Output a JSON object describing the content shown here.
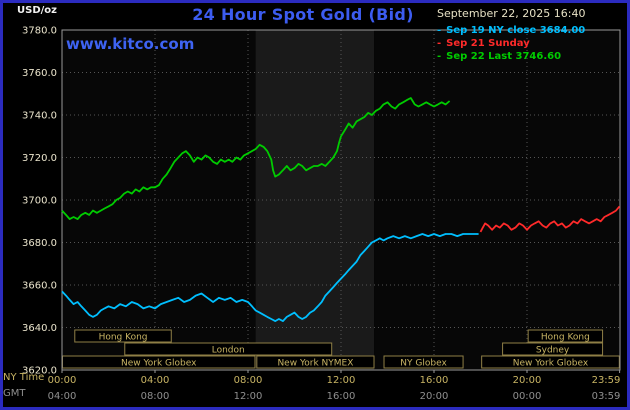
{
  "header": {
    "units_label": "USD/oz",
    "title": "24 Hour Spot Gold (Bid)",
    "datetime": "September 22, 2025 16:40",
    "watermark": "www.kitco.com"
  },
  "legend": {
    "items": [
      {
        "label": "Sep 19 NY close 3684.00",
        "color": "#00bfff"
      },
      {
        "label": "Sep 21 Sunday",
        "color": "#ff2a2a"
      },
      {
        "label": "Sep 22 Last 3746.60",
        "color": "#00cc00"
      }
    ]
  },
  "axes": {
    "y_ticks": [
      "3780.0",
      "3760.0",
      "3740.0",
      "3720.0",
      "3700.0",
      "3680.0",
      "3660.0",
      "3640.0",
      "3620.0"
    ],
    "x_row1_label": "NY Time",
    "x_row2_label": "GMT",
    "x_row1_ticks": [
      "00:00",
      "04:00",
      "08:00",
      "12:00",
      "16:00",
      "20:00",
      "23:59"
    ],
    "x_row2_ticks": [
      "04:00",
      "08:00",
      "12:00",
      "16:00",
      "20:00",
      "00:00",
      "03:59"
    ]
  },
  "sessions": [
    {
      "label": "Hong Kong",
      "row": 0,
      "start": 0.55,
      "end": 4.7
    },
    {
      "label": "Hong Kong",
      "row": 0,
      "start": 20.05,
      "end": 23.25
    },
    {
      "label": "London",
      "row": 1,
      "start": 2.7,
      "end": 11.6
    },
    {
      "label": "Sydney",
      "row": 1,
      "start": 18.95,
      "end": 23.25
    },
    {
      "label": "New York Globex",
      "row": 2,
      "start": 0.02,
      "end": 8.3
    },
    {
      "label": "New York NYMEX",
      "row": 2,
      "start": 8.38,
      "end": 13.42
    },
    {
      "label": "NY Globex",
      "row": 2,
      "start": 13.85,
      "end": 17.25
    },
    {
      "label": "New York Globex",
      "row": 2,
      "start": 18.05,
      "end": 23.97
    }
  ],
  "chart_data": {
    "type": "line",
    "title": "24 Hour Spot Gold (Bid)",
    "ylabel": "USD/oz",
    "xlabel": "NY Time (hours)",
    "x_range": [
      0,
      24
    ],
    "y_range": [
      3620,
      3780
    ],
    "y_gridlines": [
      3640,
      3660,
      3680,
      3700,
      3720,
      3740,
      3760
    ],
    "x_gridlines": [
      4,
      8,
      12,
      16,
      20
    ],
    "x_tick_hours": [
      0,
      4,
      8,
      12,
      16,
      20,
      23.983
    ],
    "nymex_band": [
      8.33,
      13.42
    ],
    "band_color": "#1a1a1a",
    "plot_bg": "#070707",
    "grid_on": true,
    "legend_position": "top-right",
    "series": [
      {
        "id": "sep22-today",
        "name": "Sep 22 Last 3746.60",
        "color": "#00cc00",
        "points": [
          [
            0,
            3695
          ],
          [
            0.17,
            3693
          ],
          [
            0.33,
            3691
          ],
          [
            0.5,
            3692
          ],
          [
            0.67,
            3691
          ],
          [
            0.83,
            3693
          ],
          [
            1,
            3694
          ],
          [
            1.17,
            3693
          ],
          [
            1.33,
            3695
          ],
          [
            1.5,
            3694
          ],
          [
            1.67,
            3695
          ],
          [
            1.83,
            3696
          ],
          [
            2,
            3697
          ],
          [
            2.17,
            3698
          ],
          [
            2.33,
            3700
          ],
          [
            2.5,
            3701
          ],
          [
            2.67,
            3703
          ],
          [
            2.83,
            3704
          ],
          [
            3,
            3703
          ],
          [
            3.17,
            3705
          ],
          [
            3.33,
            3704
          ],
          [
            3.5,
            3706
          ],
          [
            3.67,
            3705
          ],
          [
            3.83,
            3706
          ],
          [
            4,
            3706
          ],
          [
            4.17,
            3707
          ],
          [
            4.33,
            3710
          ],
          [
            4.5,
            3712
          ],
          [
            4.67,
            3715
          ],
          [
            4.83,
            3718
          ],
          [
            5,
            3720
          ],
          [
            5.17,
            3722
          ],
          [
            5.33,
            3723
          ],
          [
            5.5,
            3721
          ],
          [
            5.67,
            3718
          ],
          [
            5.83,
            3720
          ],
          [
            6,
            3719
          ],
          [
            6.17,
            3721
          ],
          [
            6.33,
            3720
          ],
          [
            6.5,
            3718
          ],
          [
            6.67,
            3717
          ],
          [
            6.83,
            3719
          ],
          [
            7,
            3718
          ],
          [
            7.17,
            3719
          ],
          [
            7.33,
            3718
          ],
          [
            7.5,
            3720
          ],
          [
            7.67,
            3719
          ],
          [
            7.83,
            3721
          ],
          [
            8,
            3722
          ],
          [
            8.17,
            3723
          ],
          [
            8.33,
            3724
          ],
          [
            8.5,
            3726
          ],
          [
            8.67,
            3725
          ],
          [
            8.83,
            3723
          ],
          [
            9,
            3719
          ],
          [
            9.08,
            3714
          ],
          [
            9.17,
            3711
          ],
          [
            9.33,
            3712
          ],
          [
            9.5,
            3714
          ],
          [
            9.67,
            3716
          ],
          [
            9.83,
            3714
          ],
          [
            10,
            3715
          ],
          [
            10.17,
            3717
          ],
          [
            10.33,
            3716
          ],
          [
            10.5,
            3714
          ],
          [
            10.67,
            3715
          ],
          [
            10.83,
            3716
          ],
          [
            11,
            3716
          ],
          [
            11.17,
            3717
          ],
          [
            11.33,
            3716
          ],
          [
            11.5,
            3718
          ],
          [
            11.67,
            3720
          ],
          [
            11.83,
            3723
          ],
          [
            11.92,
            3727
          ],
          [
            12,
            3730
          ],
          [
            12.17,
            3733
          ],
          [
            12.33,
            3736
          ],
          [
            12.5,
            3734
          ],
          [
            12.67,
            3737
          ],
          [
            12.83,
            3738
          ],
          [
            13,
            3739
          ],
          [
            13.17,
            3741
          ],
          [
            13.33,
            3740
          ],
          [
            13.5,
            3742
          ],
          [
            13.67,
            3743
          ],
          [
            13.83,
            3745
          ],
          [
            14,
            3746
          ],
          [
            14.17,
            3744
          ],
          [
            14.33,
            3743
          ],
          [
            14.5,
            3745
          ],
          [
            14.67,
            3746
          ],
          [
            14.83,
            3747
          ],
          [
            15,
            3748
          ],
          [
            15.17,
            3745
          ],
          [
            15.33,
            3744
          ],
          [
            15.5,
            3745
          ],
          [
            15.67,
            3746
          ],
          [
            15.83,
            3745
          ],
          [
            16,
            3744
          ],
          [
            16.17,
            3745
          ],
          [
            16.33,
            3746
          ],
          [
            16.5,
            3745
          ],
          [
            16.67,
            3746.6
          ]
        ]
      },
      {
        "id": "sep21-sunday",
        "name": "Sep 21 Sunday",
        "color": "#ff2a2a",
        "points": [
          [
            18,
            3685
          ],
          [
            18.1,
            3687
          ],
          [
            18.2,
            3689
          ],
          [
            18.33,
            3688
          ],
          [
            18.5,
            3686
          ],
          [
            18.67,
            3688
          ],
          [
            18.83,
            3687
          ],
          [
            19,
            3689
          ],
          [
            19.17,
            3688
          ],
          [
            19.33,
            3686
          ],
          [
            19.5,
            3687
          ],
          [
            19.67,
            3689
          ],
          [
            19.83,
            3688
          ],
          [
            20,
            3686
          ],
          [
            20.17,
            3688
          ],
          [
            20.33,
            3689
          ],
          [
            20.5,
            3690
          ],
          [
            20.67,
            3688
          ],
          [
            20.83,
            3687
          ],
          [
            21,
            3689
          ],
          [
            21.17,
            3690
          ],
          [
            21.33,
            3688
          ],
          [
            21.5,
            3689
          ],
          [
            21.67,
            3687
          ],
          [
            21.83,
            3688
          ],
          [
            22,
            3690
          ],
          [
            22.17,
            3689
          ],
          [
            22.33,
            3691
          ],
          [
            22.5,
            3690
          ],
          [
            22.67,
            3689
          ],
          [
            22.83,
            3690
          ],
          [
            23,
            3691
          ],
          [
            23.17,
            3690
          ],
          [
            23.33,
            3692
          ],
          [
            23.5,
            3693
          ],
          [
            23.67,
            3694
          ],
          [
            23.83,
            3695
          ],
          [
            23.98,
            3697
          ]
        ]
      },
      {
        "id": "sep19-ny-close",
        "name": "Sep 19 NY close 3684.00",
        "color": "#00bfff",
        "points": [
          [
            0,
            3657
          ],
          [
            0.17,
            3655
          ],
          [
            0.33,
            3653
          ],
          [
            0.5,
            3651
          ],
          [
            0.67,
            3652
          ],
          [
            0.83,
            3650
          ],
          [
            1,
            3648
          ],
          [
            1.17,
            3646
          ],
          [
            1.33,
            3645
          ],
          [
            1.5,
            3646
          ],
          [
            1.67,
            3648
          ],
          [
            1.83,
            3649
          ],
          [
            2,
            3650
          ],
          [
            2.25,
            3649
          ],
          [
            2.5,
            3651
          ],
          [
            2.75,
            3650
          ],
          [
            3,
            3652
          ],
          [
            3.25,
            3651
          ],
          [
            3.5,
            3649
          ],
          [
            3.75,
            3650
          ],
          [
            4,
            3649
          ],
          [
            4.25,
            3651
          ],
          [
            4.5,
            3652
          ],
          [
            4.75,
            3653
          ],
          [
            5,
            3654
          ],
          [
            5.25,
            3652
          ],
          [
            5.5,
            3653
          ],
          [
            5.75,
            3655
          ],
          [
            6,
            3656
          ],
          [
            6.25,
            3654
          ],
          [
            6.5,
            3652
          ],
          [
            6.75,
            3654
          ],
          [
            7,
            3653
          ],
          [
            7.25,
            3654
          ],
          [
            7.5,
            3652
          ],
          [
            7.75,
            3653
          ],
          [
            8,
            3652
          ],
          [
            8.17,
            3650
          ],
          [
            8.33,
            3648
          ],
          [
            8.5,
            3647
          ],
          [
            8.67,
            3646
          ],
          [
            8.83,
            3645
          ],
          [
            9,
            3644
          ],
          [
            9.17,
            3643
          ],
          [
            9.33,
            3644
          ],
          [
            9.5,
            3643
          ],
          [
            9.67,
            3645
          ],
          [
            9.83,
            3646
          ],
          [
            10,
            3647
          ],
          [
            10.17,
            3645
          ],
          [
            10.33,
            3644
          ],
          [
            10.5,
            3645
          ],
          [
            10.67,
            3647
          ],
          [
            10.83,
            3648
          ],
          [
            11,
            3650
          ],
          [
            11.17,
            3652
          ],
          [
            11.33,
            3655
          ],
          [
            11.5,
            3657
          ],
          [
            11.67,
            3659
          ],
          [
            11.83,
            3661
          ],
          [
            12,
            3663
          ],
          [
            12.17,
            3665
          ],
          [
            12.33,
            3667
          ],
          [
            12.5,
            3669
          ],
          [
            12.67,
            3671
          ],
          [
            12.83,
            3674
          ],
          [
            13,
            3676
          ],
          [
            13.17,
            3678
          ],
          [
            13.33,
            3680
          ],
          [
            13.5,
            3681
          ],
          [
            13.67,
            3682
          ],
          [
            13.83,
            3681
          ],
          [
            14,
            3682
          ],
          [
            14.25,
            3683
          ],
          [
            14.5,
            3682
          ],
          [
            14.75,
            3683
          ],
          [
            15,
            3682
          ],
          [
            15.25,
            3683
          ],
          [
            15.5,
            3684
          ],
          [
            15.75,
            3683
          ],
          [
            16,
            3684
          ],
          [
            16.25,
            3683
          ],
          [
            16.5,
            3684
          ],
          [
            16.75,
            3684
          ],
          [
            17,
            3683
          ],
          [
            17.25,
            3684
          ],
          [
            17.5,
            3684
          ],
          [
            17.75,
            3684
          ],
          [
            17.92,
            3684
          ]
        ]
      }
    ]
  }
}
